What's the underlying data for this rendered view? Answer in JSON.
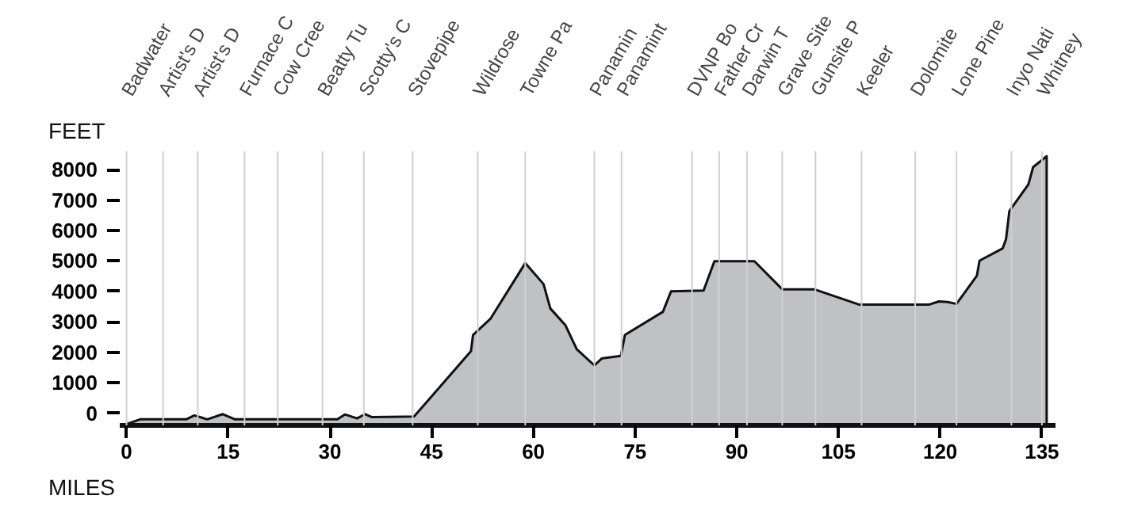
{
  "chart_data": {
    "type": "area",
    "xlabel": "MILES",
    "ylabel": "FEET",
    "x": [
      0,
      2,
      8.8,
      10,
      11.9,
      14.2,
      16,
      31.1,
      32.2,
      34,
      35.2,
      36.2,
      42.4,
      50.8,
      51.1,
      53.7,
      58.8,
      61.5,
      62.5,
      64.7,
      66.4,
      69,
      70.1,
      72.9,
      73.5,
      79.1,
      80.3,
      85.1,
      86.7,
      92.6,
      96.7,
      101.4,
      108,
      118.4,
      119.8,
      121.1,
      122.4,
      125.4,
      125.8,
      129.2,
      129.7,
      130.2,
      133,
      133.7,
      135.7,
      135.7
    ],
    "series": [
      {
        "color": "#c0c1c3",
        "values": [
          -360,
          -200,
          -200,
          -70,
          -200,
          -30,
          -200,
          -200,
          -40,
          -170,
          -30,
          -130,
          -110,
          2040,
          2570,
          3110,
          4930,
          4240,
          3440,
          2900,
          2100,
          1570,
          1800,
          1880,
          2570,
          3330,
          4000,
          4030,
          4990,
          4990,
          4070,
          4070,
          3570,
          3570,
          3670,
          3650,
          3590,
          4510,
          5010,
          5410,
          5710,
          6640,
          7510,
          8080,
          8440,
          -360
        ]
      }
    ],
    "xlim": [
      -1,
      137
    ],
    "ylim": [
      -400,
      8600
    ],
    "xticks": [
      0,
      15,
      30,
      45,
      60,
      75,
      90,
      105,
      120,
      135
    ],
    "yticks": [
      0,
      1000,
      2000,
      3000,
      4000,
      5000,
      6000,
      7000,
      8000
    ],
    "grid": false,
    "ref_lines": [
      {
        "axis": "x",
        "value": 0,
        "label": "Badwater",
        "color": "#d0d0d0"
      },
      {
        "axis": "x",
        "value": 5.4,
        "label": "Artist's D",
        "color": "#d0d0d0"
      },
      {
        "axis": "x",
        "value": 10.5,
        "label": "Artist's D",
        "color": "#d0d0d0"
      },
      {
        "axis": "x",
        "value": 17.4,
        "label": "Furnace C",
        "color": "#d0d0d0"
      },
      {
        "axis": "x",
        "value": 22.3,
        "label": "Cow Cree",
        "color": "#d0d0d0"
      },
      {
        "axis": "x",
        "value": 28.9,
        "label": "Beatty Tu",
        "color": "#d0d0d0"
      },
      {
        "axis": "x",
        "value": 35,
        "label": "Scotty's C",
        "color": "#d0d0d0"
      },
      {
        "axis": "x",
        "value": 42.2,
        "label": "Stovepipe",
        "color": "#d0d0d0"
      },
      {
        "axis": "x",
        "value": 51.8,
        "label": "Wildrose",
        "color": "#d0d0d0"
      },
      {
        "axis": "x",
        "value": 58.8,
        "label": "Towne Pa",
        "color": "#d0d0d0"
      },
      {
        "axis": "x",
        "value": 69,
        "label": "Panamin",
        "color": "#d0d0d0"
      },
      {
        "axis": "x",
        "value": 73,
        "label": "Panamint",
        "color": "#d0d0d0"
      },
      {
        "axis": "x",
        "value": 83.4,
        "label": "DVNP Bo",
        "color": "#d0d0d0"
      },
      {
        "axis": "x",
        "value": 87.4,
        "label": "Father Cr",
        "color": "#d0d0d0"
      },
      {
        "axis": "x",
        "value": 91.5,
        "label": "Darwin T",
        "color": "#d0d0d0"
      },
      {
        "axis": "x",
        "value": 96.7,
        "label": "Grave Site",
        "color": "#d0d0d0"
      },
      {
        "axis": "x",
        "value": 101.6,
        "label": "Gunsite P",
        "color": "#d0d0d0"
      },
      {
        "axis": "x",
        "value": 108.4,
        "label": "Keeler",
        "color": "#d0d0d0"
      },
      {
        "axis": "x",
        "value": 116.3,
        "label": "Dolomite",
        "color": "#d0d0d0"
      },
      {
        "axis": "x",
        "value": 122.4,
        "label": "Lone Pine",
        "color": "#d0d0d0"
      },
      {
        "axis": "x",
        "value": 130.5,
        "label": "Inyo Nati",
        "color": "#d0d0d0"
      },
      {
        "axis": "x",
        "value": 135,
        "label": "Whitney",
        "color": "#d0d0d0"
      }
    ]
  }
}
